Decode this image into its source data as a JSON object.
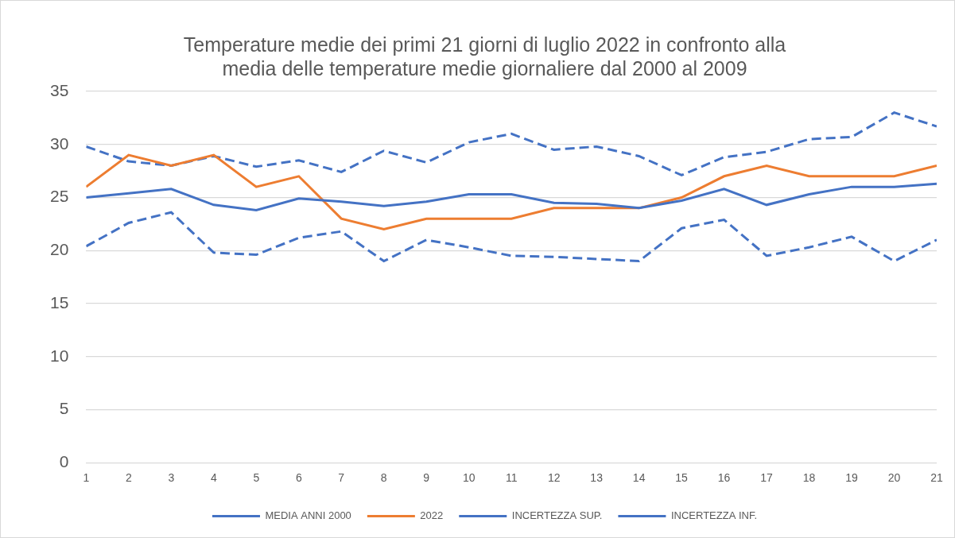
{
  "chart_data": {
    "type": "line",
    "title": [
      "Temperature medie dei primi 21 giorni di luglio 2022 in confronto alla",
      "media delle temperature medie giornaliere dal 2000 al 2009"
    ],
    "categories": [
      "1",
      "2",
      "3",
      "4",
      "5",
      "6",
      "7",
      "8",
      "9",
      "10",
      "11",
      "12",
      "13",
      "14",
      "15",
      "16",
      "17",
      "18",
      "19",
      "20",
      "21"
    ],
    "series": [
      {
        "name": "MEDIA ANNI 2000",
        "color": "#4472c4",
        "line_style": "solid",
        "marker": "none",
        "values": [
          25.0,
          25.4,
          25.8,
          24.3,
          23.8,
          24.9,
          24.6,
          24.2,
          24.6,
          25.3,
          25.3,
          24.5,
          24.4,
          24.0,
          24.7,
          25.8,
          24.3,
          25.3,
          26.0,
          26.0,
          26.3
        ]
      },
      {
        "name": "2022",
        "color": "#ed7d31",
        "line_style": "solid",
        "marker": "none",
        "values": [
          26,
          29,
          28,
          29,
          26,
          27,
          23,
          22,
          23,
          23,
          23,
          24,
          24,
          24,
          25,
          27,
          28,
          27,
          27,
          27,
          28
        ]
      },
      {
        "name": "INCERTEZZA SUP.",
        "color": "#4472c4",
        "line_style": "dashed",
        "marker": "none",
        "values": [
          29.8,
          28.4,
          28.0,
          28.9,
          27.9,
          28.5,
          27.4,
          29.4,
          28.3,
          30.2,
          31.0,
          29.5,
          29.8,
          28.9,
          27.1,
          28.8,
          29.3,
          30.5,
          30.7,
          33.0,
          31.7
        ]
      },
      {
        "name": "INCERTEZZA INF.",
        "color": "#4472c4",
        "line_style": "dashed",
        "marker": "none",
        "values": [
          20.4,
          22.6,
          23.6,
          19.8,
          19.6,
          21.2,
          21.8,
          19.0,
          21.0,
          20.3,
          19.5,
          19.4,
          19.2,
          19.0,
          22.1,
          22.9,
          19.5,
          20.3,
          21.3,
          19.0,
          21.0
        ]
      }
    ],
    "ylim": [
      0,
      35
    ],
    "yticks": [
      0,
      5,
      10,
      15,
      20,
      25,
      30,
      35
    ],
    "grid": true,
    "legend": "bottom"
  }
}
